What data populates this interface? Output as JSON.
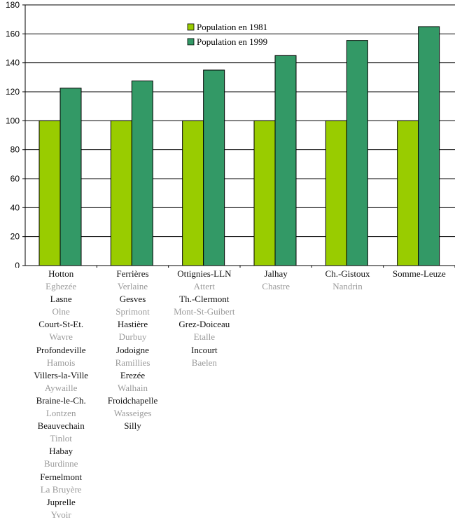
{
  "chart_data": {
    "type": "bar",
    "categories": [
      "Hotton",
      "Ferrières",
      "Ottignies-LLN",
      "Jalhay",
      "Ch.-Gistoux",
      "Somme-Leuze"
    ],
    "series": [
      {
        "name": "Population en 1981",
        "values": [
          100,
          100,
          100,
          100,
          100,
          100
        ],
        "color": "#99cc00"
      },
      {
        "name": "Population en 1999",
        "values": [
          122.5,
          127.5,
          135,
          145,
          155.5,
          165
        ],
        "color": "#339966"
      }
    ],
    "ylim": [
      0,
      180
    ],
    "yticks": [
      0,
      20,
      40,
      60,
      80,
      100,
      120,
      140,
      160,
      180
    ],
    "grid": true,
    "legend_position": "top-center",
    "title": "",
    "xlabel": "",
    "ylabel": "",
    "category_groups": [
      [
        "Hotton",
        "Eghezée",
        "Lasne",
        "Olne",
        "Court-St-Et.",
        "Wavre",
        "Profondeville",
        "Hamois",
        "Villers-la-Ville",
        "Aywaille",
        "Braine-le-Ch.",
        "Lontzen",
        "Beauvechain",
        "Tinlot",
        "Habay",
        "Burdinne",
        "Fernelmont",
        "La Bruyère",
        "Juprelle",
        "Yvoir"
      ],
      [
        "Ferrières",
        "Verlaine",
        "Gesves",
        "Sprimont",
        "Hastière",
        "Durbuy",
        "Jodoigne",
        "Ramillies",
        "Erezée",
        "Walhain",
        "Froidchapelle",
        "Wasseiges",
        "Silly"
      ],
      [
        "Ottignies-LLN",
        "Attert",
        "Th.-Clermont",
        "Mont-St-Guibert",
        "Grez-Doiceau",
        "Etalle",
        "Incourt",
        "Baelen"
      ],
      [
        "Jalhay",
        "Chastre"
      ],
      [
        "Ch.-Gistoux",
        "Nandrin"
      ],
      [
        "Somme-Leuze"
      ]
    ]
  },
  "colors": {
    "grid": "#000000",
    "label_primary": "#111111",
    "label_secondary": "#9a9a9a"
  }
}
